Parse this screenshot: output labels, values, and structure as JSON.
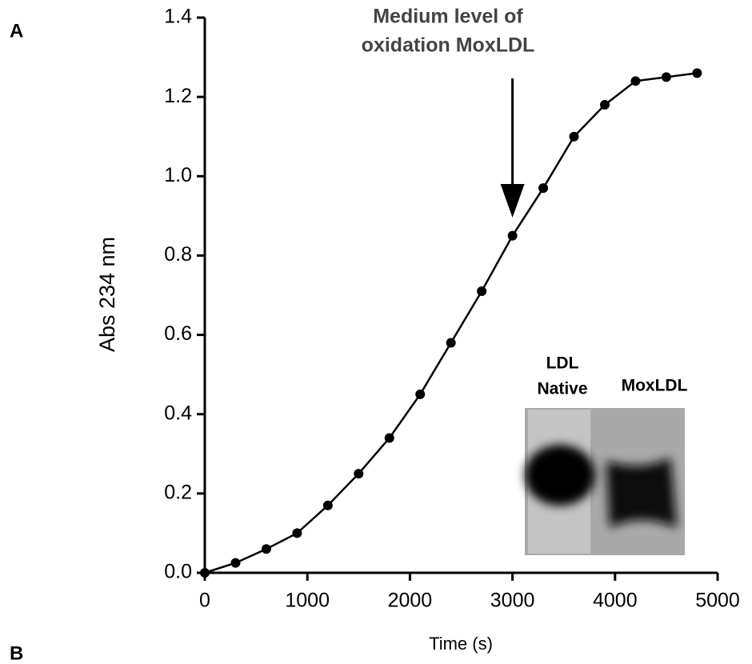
{
  "chart_data": {
    "type": "line",
    "panel_labels": [
      "A",
      "B"
    ],
    "xlabel": "Time (s)",
    "ylabel": "Abs 234 nm",
    "x": [
      0,
      300,
      600,
      900,
      1200,
      1500,
      1800,
      2100,
      2400,
      2700,
      3000,
      3300,
      3600,
      3900,
      4200,
      4500,
      4800
    ],
    "values": [
      0,
      0.025,
      0.06,
      0.1,
      0.17,
      0.25,
      0.34,
      0.45,
      0.58,
      0.71,
      0.85,
      0.97,
      1.1,
      1.18,
      1.24,
      1.25,
      1.26
    ],
    "color": "#000000",
    "xlim": [
      0,
      5000
    ],
    "xticks": [
      0,
      1000,
      2000,
      3000,
      4000,
      5000
    ],
    "ylim": [
      0,
      1.4
    ],
    "yticks": [
      {
        "value": 0,
        "label": "0.0"
      },
      0.2,
      0.4,
      0.6,
      0.8,
      {
        "value": 1,
        "label": "1.0"
      },
      1.2,
      1.4
    ],
    "annotation": {
      "text": [
        "Medium level of",
        "oxidation MoxLDL"
      ],
      "x": 3000
    },
    "inset_labels": [
      [
        "LDL",
        "Native"
      ],
      [
        "MoxLDL"
      ]
    ]
  }
}
